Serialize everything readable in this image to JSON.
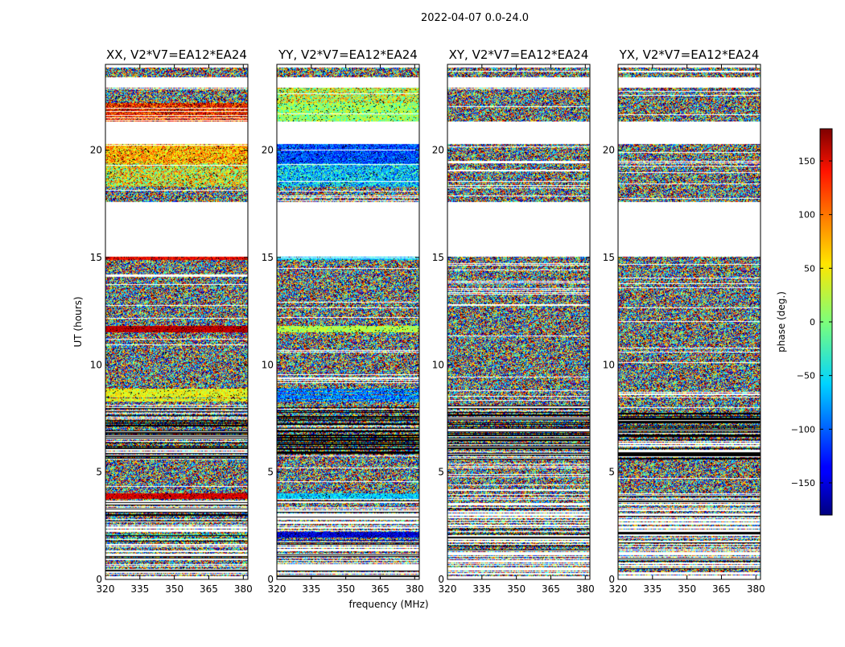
{
  "figure_title": "2022-04-07 0.0-24.0",
  "chart_data": {
    "type": "heatmap",
    "title": "2022-04-07 0.0-24.0",
    "xlabel": "frequency (MHz)",
    "ylabel": "UT (hours)",
    "xlim": [
      320,
      382
    ],
    "ylim": [
      0,
      24
    ],
    "x_ticks": [
      "320",
      "335",
      "350",
      "365",
      "380"
    ],
    "x_tick_values": [
      320,
      335,
      350,
      365,
      380
    ],
    "y_ticks": [
      "0",
      "5",
      "10",
      "15",
      "20"
    ],
    "y_tick_values": [
      0,
      5,
      10,
      15,
      20
    ],
    "colorbar": {
      "label": "phase (deg.)",
      "range": [
        -180,
        180
      ],
      "ticks": [
        "150",
        "100",
        "50",
        "0",
        "−50",
        "−100",
        "−150"
      ],
      "tick_values": [
        150,
        100,
        50,
        0,
        -50,
        -100,
        -150
      ],
      "colormap": "jet"
    },
    "panels": [
      {
        "title": "XX, V2*V7=EA12*EA24",
        "rows": [
          {
            "from": 23.4,
            "to": 23.85,
            "mode": "noise"
          },
          {
            "from": 22.2,
            "to": 22.9,
            "mode": "noise"
          },
          {
            "from": 21.35,
            "to": 22.2,
            "mode": "tint",
            "center": 130,
            "spread": 70
          },
          {
            "from": 19.4,
            "to": 20.3,
            "mode": "tint",
            "center": 70,
            "spread": 60
          },
          {
            "from": 18.3,
            "to": 19.4,
            "mode": "tint",
            "center": 40,
            "spread": 90
          },
          {
            "from": 17.6,
            "to": 18.3,
            "mode": "noise"
          },
          {
            "from": 14.9,
            "to": 15.05,
            "mode": "tint",
            "center": 140,
            "spread": 30
          },
          {
            "from": 11.8,
            "to": 14.9,
            "mode": "noise"
          },
          {
            "from": 11.5,
            "to": 11.8,
            "mode": "tint",
            "center": 160,
            "spread": 20
          },
          {
            "from": 8.1,
            "to": 11.5,
            "mode": "noise"
          },
          {
            "from": 8.3,
            "to": 8.9,
            "mode": "tint",
            "center": 40,
            "spread": 40
          },
          {
            "from": 5.6,
            "to": 8.1,
            "mode": "dark"
          },
          {
            "from": 4.0,
            "to": 5.6,
            "mode": "noise"
          },
          {
            "from": 3.75,
            "to": 4.0,
            "mode": "tint",
            "center": 150,
            "spread": 25
          },
          {
            "from": 1.8,
            "to": 2.2,
            "mode": "tint",
            "center": -20,
            "spread": 50
          },
          {
            "from": 0.1,
            "to": 3.75,
            "mode": "sparse"
          }
        ]
      },
      {
        "title": "YY, V2*V7=EA12*EA24",
        "rows": [
          {
            "from": 23.4,
            "to": 23.85,
            "mode": "noise"
          },
          {
            "from": 22.2,
            "to": 22.9,
            "mode": "tint",
            "center": 30,
            "spread": 80
          },
          {
            "from": 21.35,
            "to": 22.2,
            "mode": "tint",
            "center": 10,
            "spread": 50
          },
          {
            "from": 19.4,
            "to": 20.3,
            "mode": "tint",
            "center": -110,
            "spread": 50
          },
          {
            "from": 18.3,
            "to": 19.4,
            "mode": "tint",
            "center": -60,
            "spread": 70
          },
          {
            "from": 17.6,
            "to": 18.3,
            "mode": "noise"
          },
          {
            "from": 14.9,
            "to": 15.05,
            "mode": "tint",
            "center": -60,
            "spread": 40
          },
          {
            "from": 11.8,
            "to": 14.9,
            "mode": "noise"
          },
          {
            "from": 11.5,
            "to": 11.8,
            "mode": "tint",
            "center": 20,
            "spread": 40
          },
          {
            "from": 8.1,
            "to": 11.5,
            "mode": "noise"
          },
          {
            "from": 8.3,
            "to": 8.9,
            "mode": "tint",
            "center": -90,
            "spread": 50
          },
          {
            "from": 5.6,
            "to": 8.1,
            "mode": "dark"
          },
          {
            "from": 4.0,
            "to": 5.6,
            "mode": "noise"
          },
          {
            "from": 3.75,
            "to": 4.0,
            "mode": "tint",
            "center": -60,
            "spread": 40
          },
          {
            "from": 1.8,
            "to": 2.2,
            "mode": "tint",
            "center": -150,
            "spread": 40
          },
          {
            "from": 0.1,
            "to": 3.75,
            "mode": "sparse"
          }
        ]
      },
      {
        "title": "XY, V2*V7=EA12*EA24",
        "rows": [
          {
            "from": 23.4,
            "to": 23.85,
            "mode": "noise"
          },
          {
            "from": 22.2,
            "to": 22.9,
            "mode": "noise"
          },
          {
            "from": 21.35,
            "to": 22.2,
            "mode": "noise"
          },
          {
            "from": 19.4,
            "to": 20.3,
            "mode": "noise"
          },
          {
            "from": 18.3,
            "to": 19.4,
            "mode": "noise"
          },
          {
            "from": 17.6,
            "to": 18.3,
            "mode": "noise"
          },
          {
            "from": 14.9,
            "to": 15.05,
            "mode": "noise"
          },
          {
            "from": 11.8,
            "to": 14.9,
            "mode": "noise"
          },
          {
            "from": 11.5,
            "to": 11.8,
            "mode": "noise"
          },
          {
            "from": 8.1,
            "to": 11.5,
            "mode": "noise"
          },
          {
            "from": 5.6,
            "to": 8.1,
            "mode": "dark"
          },
          {
            "from": 4.0,
            "to": 5.6,
            "mode": "noise"
          },
          {
            "from": 0.1,
            "to": 4.0,
            "mode": "sparse"
          }
        ]
      },
      {
        "title": "YX, V2*V7=EA12*EA24",
        "rows": [
          {
            "from": 23.4,
            "to": 23.85,
            "mode": "noise"
          },
          {
            "from": 22.2,
            "to": 22.9,
            "mode": "noise"
          },
          {
            "from": 21.35,
            "to": 22.2,
            "mode": "noise"
          },
          {
            "from": 19.4,
            "to": 20.3,
            "mode": "noise"
          },
          {
            "from": 18.3,
            "to": 19.4,
            "mode": "noise"
          },
          {
            "from": 17.6,
            "to": 18.3,
            "mode": "noise"
          },
          {
            "from": 14.9,
            "to": 15.05,
            "mode": "noise"
          },
          {
            "from": 11.8,
            "to": 14.9,
            "mode": "noise"
          },
          {
            "from": 11.5,
            "to": 11.8,
            "mode": "noise"
          },
          {
            "from": 8.1,
            "to": 11.5,
            "mode": "noise"
          },
          {
            "from": 5.6,
            "to": 8.1,
            "mode": "dark"
          },
          {
            "from": 4.0,
            "to": 5.6,
            "mode": "noise"
          },
          {
            "from": 0.1,
            "to": 4.0,
            "mode": "sparse"
          }
        ]
      }
    ],
    "gaps_hours": [
      [
        0,
        0.1
      ],
      [
        22.9,
        23.4
      ],
      [
        20.3,
        21.35
      ],
      [
        15.05,
        17.6
      ]
    ],
    "grid": false
  }
}
